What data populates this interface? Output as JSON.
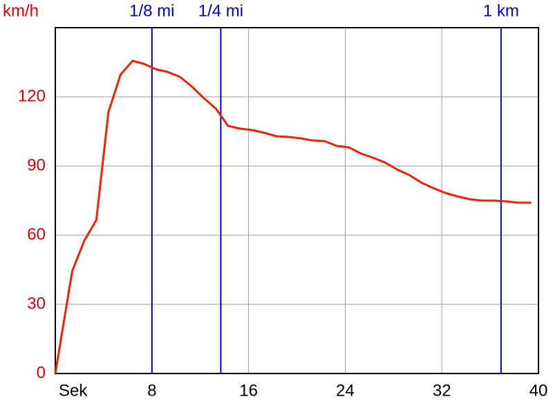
{
  "chart_data": {
    "type": "line",
    "y_label": "km/h",
    "xlim": [
      0,
      40
    ],
    "ylim": [
      0,
      150
    ],
    "xticks": [
      {
        "value": 0,
        "label": "Sek"
      },
      8,
      16,
      24,
      32,
      40
    ],
    "yticks": [
      0,
      30,
      60,
      90,
      120
    ],
    "grid": true,
    "markers_color": "#0000cc",
    "markers": [
      {
        "label": "1/8 mi",
        "x": 8
      },
      {
        "label": "1/4 mi",
        "x": 13.7
      },
      {
        "label": "1 km",
        "x": 36.9
      }
    ],
    "series": [
      {
        "color": "#ee2200",
        "x": [
          0,
          1.4,
          2.4,
          3.4,
          4.4,
          5.4,
          6.4,
          7.3,
          8.3,
          9.3,
          10.3,
          11.3,
          12.3,
          13.3,
          14.3,
          15.3,
          16.3,
          17.3,
          18.3,
          19.3,
          20.3,
          21.3,
          22.3,
          23.3,
          24.3,
          25.3,
          26.3,
          27.3,
          28.3,
          29.3,
          30.3,
          31.3,
          32.3,
          33.3,
          34.3,
          35.3,
          36.3,
          37.3,
          38.3,
          39.4
        ],
        "values": [
          0,
          44.4,
          57.6,
          66.6,
          113.4,
          129.6,
          135.6,
          134.4,
          132,
          130.8,
          128.7,
          124.5,
          119.4,
          114.9,
          107.4,
          106.2,
          105.6,
          104.4,
          102.9,
          102.6,
          102,
          101.1,
          100.8,
          98.7,
          98.1,
          95.4,
          93.6,
          91.5,
          88.5,
          86.1,
          82.8,
          80.4,
          78.3,
          76.8,
          75.6,
          75,
          75,
          74.7,
          74.1,
          74.1
        ]
      }
    ]
  }
}
